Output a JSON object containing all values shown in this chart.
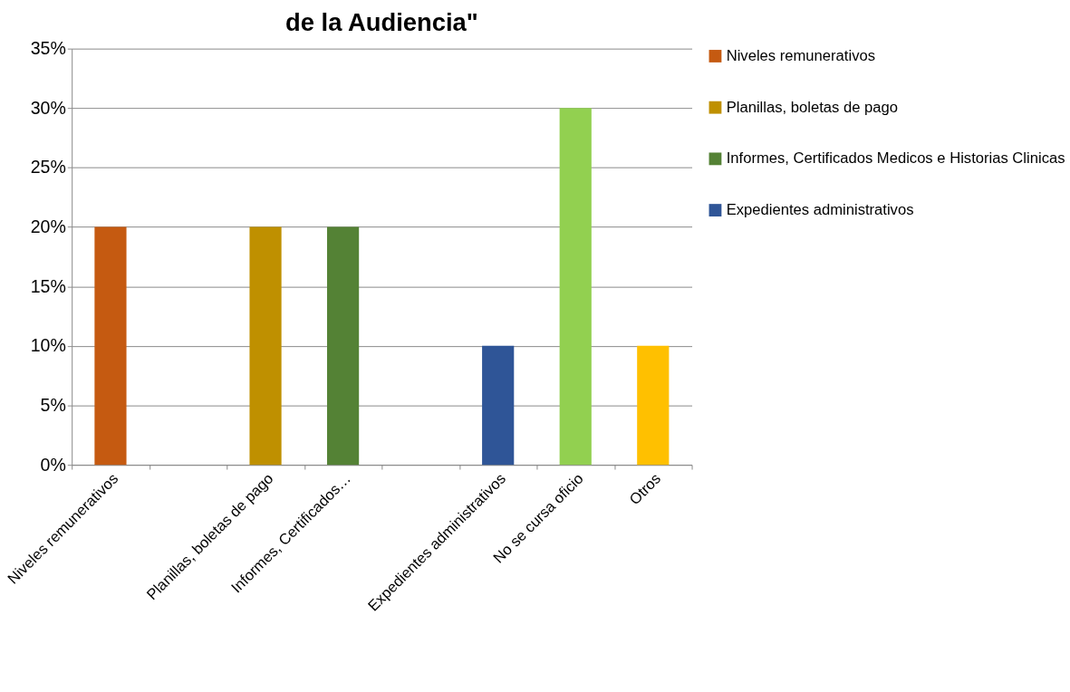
{
  "chart_data": {
    "type": "bar",
    "title": "de la Audiencia\"",
    "categories": [
      "Niveles remunerativos",
      null,
      "Planillas, boletas de pago",
      "Informes, Certificados…",
      null,
      "Expedientes administrativos",
      "No se cursa oficio",
      "Otros"
    ],
    "series": [
      {
        "name": "Niveles remunerativos",
        "color": "#c55a11",
        "values": [
          20,
          null,
          null,
          null,
          null,
          null,
          null,
          null
        ]
      },
      {
        "name": "Planillas, boletas de pago",
        "color": "#bf9000",
        "values": [
          null,
          null,
          20,
          null,
          null,
          null,
          null,
          null
        ]
      },
      {
        "name": "Informes, Certificados Medicos e Historias Clinicas",
        "color": "#548235",
        "values": [
          null,
          null,
          null,
          20,
          null,
          null,
          null,
          null
        ]
      },
      {
        "name": "Expedientes administrativos",
        "color": "#2f5597",
        "values": [
          null,
          null,
          null,
          null,
          null,
          10,
          null,
          null
        ]
      },
      {
        "color": "#92d050",
        "values": [
          null,
          null,
          null,
          null,
          null,
          null,
          30,
          null
        ]
      },
      {
        "color": "#ffc000",
        "values": [
          null,
          null,
          null,
          null,
          null,
          null,
          null,
          10
        ]
      }
    ],
    "ylim": [
      0,
      35
    ],
    "yticks": [
      {
        "value": 0,
        "label": "0%"
      },
      {
        "value": 5,
        "label": "5%"
      },
      {
        "value": 10,
        "label": "10%"
      },
      {
        "value": 15,
        "label": "15%"
      },
      {
        "value": 20,
        "label": "20%"
      },
      {
        "value": 25,
        "label": "25%"
      },
      {
        "value": 30,
        "label": "30%"
      },
      {
        "value": 35,
        "label": "35%"
      }
    ],
    "grid": "y",
    "legend": "right"
  }
}
